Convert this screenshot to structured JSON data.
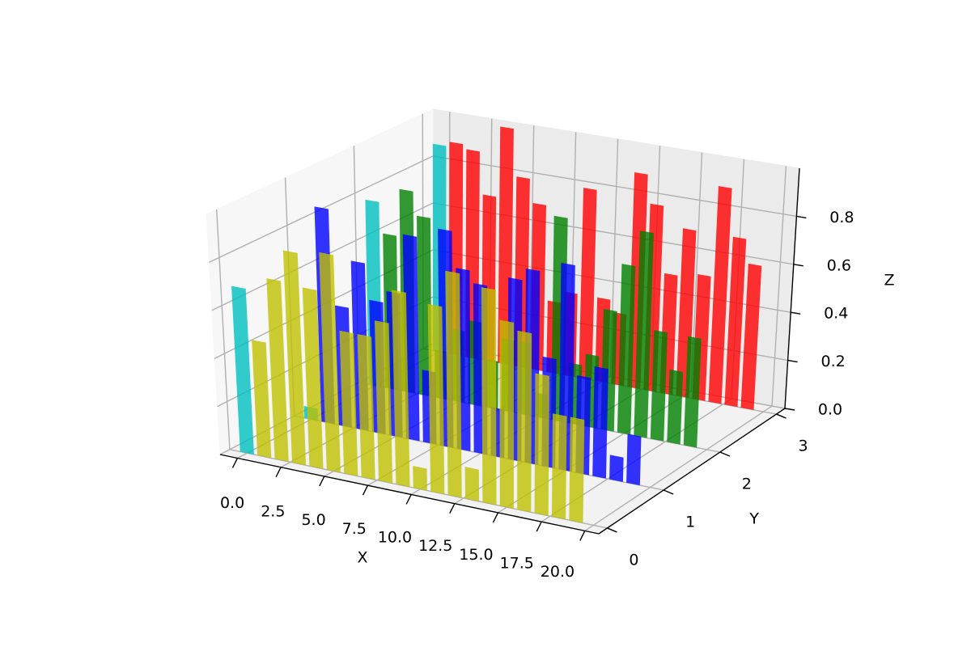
{
  "chart_data": {
    "type": "bar3d",
    "xlabel": "X",
    "ylabel": "Y",
    "zlabel": "Z",
    "x": [
      0,
      1,
      2,
      3,
      4,
      5,
      6,
      7,
      8,
      9,
      10,
      11,
      12,
      13,
      14,
      15,
      16,
      17,
      18,
      19
    ],
    "bar_width": 0.8,
    "alpha": 0.8,
    "series": [
      {
        "y": 3,
        "color": "#ff0000",
        "colors": [
          "#00bfbf",
          "#ff0000",
          "#ff0000",
          "#ff0000",
          "#ff0000",
          "#ff0000",
          "#ff0000",
          "#ff0000",
          "#ff0000",
          "#ff0000",
          "#ff0000",
          "#ff0000",
          "#ff0000",
          "#ff0000",
          "#ff0000",
          "#ff0000",
          "#ff0000",
          "#ff0000",
          "#ff0000",
          "#ff0000"
        ],
        "values": [
          0.88,
          0.9,
          0.88,
          0.7,
          1.0,
          0.8,
          0.7,
          0.3,
          0.35,
          0.8,
          0.35,
          0.3,
          0.9,
          0.78,
          0.5,
          0.7,
          0.52,
          0.9,
          0.7,
          0.6
        ]
      },
      {
        "y": 2,
        "color": "#008000",
        "colors": [
          "#00bfbf",
          "#008000",
          "#008000",
          "#008000",
          "#008000",
          "#008000",
          "#008000",
          "#008000",
          "#008000",
          "#008000",
          "#008000",
          "#008000",
          "#008000",
          "#008000",
          "#008000",
          "#008000",
          "#008000",
          "#008000",
          "#008000",
          "#008000"
        ],
        "values": [
          0.78,
          0.65,
          0.85,
          0.75,
          0.2,
          0.3,
          0.35,
          0.2,
          0.3,
          0.3,
          0.1,
          0.85,
          0.25,
          0.3,
          0.5,
          0.7,
          0.85,
          0.45,
          0.3,
          0.45
        ]
      },
      {
        "y": 1,
        "color": "#0000ff",
        "colors": [
          "#00bfbf",
          "#0000ff",
          "#0000ff",
          "#0000ff",
          "#0000ff",
          "#0000ff",
          "#0000ff",
          "#0000ff",
          "#0000ff",
          "#0000ff",
          "#0000ff",
          "#0000ff",
          "#0000ff",
          "#0000ff",
          "#0000ff",
          "#0000ff",
          "#0000ff",
          "#0000ff",
          "#0000ff",
          "#0000ff"
        ],
        "values": [
          0.05,
          0.9,
          0.5,
          0.7,
          0.55,
          0.6,
          0.85,
          0.3,
          0.9,
          0.75,
          0.7,
          0.2,
          0.75,
          0.8,
          0.45,
          0.85,
          0.4,
          0.45,
          0.1,
          0.2
        ]
      },
      {
        "y": 0,
        "color": "#bfbf00",
        "colors": [
          "#00bfbf",
          "#bfbf00",
          "#bfbf00",
          "#bfbf00",
          "#bfbf00",
          "#bfbf00",
          "#bfbf00",
          "#bfbf00",
          "#bfbf00",
          "#bfbf00",
          "#bfbf00",
          "#bfbf00",
          "#bfbf00",
          "#bfbf00",
          "#bfbf00",
          "#bfbf00",
          "#bfbf00",
          "#bfbf00",
          "#bfbf00",
          "#bfbf00"
        ],
        "values": [
          0.69,
          0.48,
          0.75,
          0.88,
          0.74,
          0.9,
          0.59,
          0.59,
          0.66,
          0.8,
          0.09,
          0.77,
          0.92,
          0.13,
          0.88,
          0.76,
          0.73,
          0.57,
          0.42,
          0.42
        ]
      }
    ],
    "xlim": [
      -1,
      20.8
    ],
    "ylim": [
      -0.15,
      3.15
    ],
    "zlim": [
      0,
      1.0
    ],
    "xticks": [
      {
        "value": 0,
        "label": "0.0"
      },
      2.5,
      {
        "value": 5,
        "label": "5.0"
      },
      7.5,
      {
        "value": 10,
        "label": "10.0"
      },
      12.5,
      {
        "value": 15,
        "label": "15.0"
      },
      17.5,
      {
        "value": 20,
        "label": "20.0"
      }
    ],
    "yticks": [
      0,
      1,
      2,
      3
    ],
    "zticks": [
      {
        "value": 0,
        "label": "0.0"
      },
      0.2,
      0.4,
      0.6,
      0.8
    ],
    "grid": true
  }
}
